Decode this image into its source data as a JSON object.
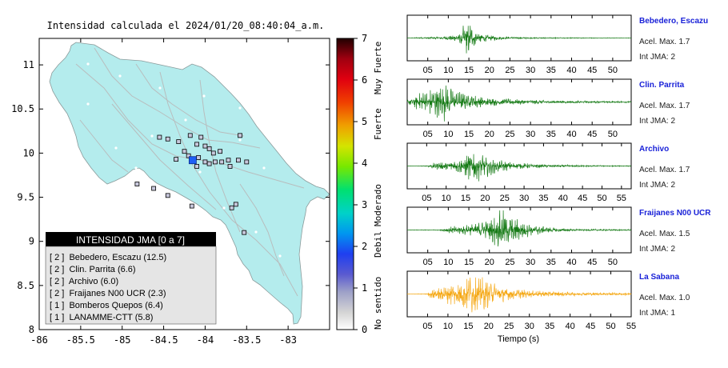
{
  "map": {
    "title": "Intensidad calculada el 2024/01/20_08:40:04_a.m.",
    "x_ticks": [
      "-86",
      "-85.5",
      "-85",
      "-84.5",
      "-84",
      "-83.5",
      "-83"
    ],
    "y_ticks": [
      "11",
      "10.5",
      "10",
      "9.5",
      "9",
      "8.5",
      "8"
    ],
    "xlim": [
      -86,
      -82.5
    ],
    "ylim": [
      8,
      11.3
    ],
    "land_color": "#b4eced",
    "legend": {
      "title": "INTENSIDAD JMA [0 a 7]",
      "items": [
        "[ 2 ]  Bebedero, Escazu (12.5)",
        "[ 2 ]  Clin. Parrita (6.6)",
        "[ 2 ]  Archivo (6.0)",
        "[ 2 ]  Fraijanes N00 UCR (2.3)",
        "[ 1 ]  Bomberos Quepos (6.4)",
        "[ 1 ]  LANAMME-CTT (5.8)"
      ]
    }
  },
  "colorbar": {
    "ticks": [
      "0",
      "1",
      "2",
      "3",
      "4",
      "5",
      "6",
      "7"
    ],
    "bands": [
      "No sentido",
      "Debil",
      "Moderado",
      "Fuerte",
      "Muy Fuerte"
    ],
    "range": [
      0,
      7
    ]
  },
  "chart_data": [
    {
      "type": "scatter",
      "title": "Intensidad calculada el 2024/01/20_08:40:04_a.m.",
      "xlim": [
        -86,
        -82.5
      ],
      "ylim": [
        8,
        11.3
      ],
      "epicenter": {
        "lon": -84.15,
        "lat": 9.92,
        "color": "#1e5ff5"
      },
      "points": [
        {
          "lon": -84.55,
          "lat": 10.18
        },
        {
          "lon": -84.45,
          "lat": 10.16
        },
        {
          "lon": -84.32,
          "lat": 10.13
        },
        {
          "lon": -84.18,
          "lat": 10.2
        },
        {
          "lon": -84.05,
          "lat": 10.18
        },
        {
          "lon": -84.1,
          "lat": 10.1
        },
        {
          "lon": -84.0,
          "lat": 10.08
        },
        {
          "lon": -83.95,
          "lat": 10.05
        },
        {
          "lon": -83.9,
          "lat": 10.0
        },
        {
          "lon": -83.82,
          "lat": 10.02
        },
        {
          "lon": -84.25,
          "lat": 10.02
        },
        {
          "lon": -84.2,
          "lat": 9.97
        },
        {
          "lon": -84.08,
          "lat": 9.95
        },
        {
          "lon": -84.0,
          "lat": 9.9
        },
        {
          "lon": -83.95,
          "lat": 9.88
        },
        {
          "lon": -83.88,
          "lat": 9.9
        },
        {
          "lon": -83.8,
          "lat": 9.9
        },
        {
          "lon": -83.72,
          "lat": 9.92
        },
        {
          "lon": -83.7,
          "lat": 9.85
        },
        {
          "lon": -83.6,
          "lat": 9.92
        },
        {
          "lon": -83.5,
          "lat": 9.9
        },
        {
          "lon": -84.35,
          "lat": 9.93
        },
        {
          "lon": -84.1,
          "lat": 9.85
        },
        {
          "lon": -83.58,
          "lat": 10.2
        },
        {
          "lon": -84.62,
          "lat": 9.6
        },
        {
          "lon": -84.82,
          "lat": 9.65
        },
        {
          "lon": -84.45,
          "lat": 9.52
        },
        {
          "lon": -84.16,
          "lat": 9.4
        },
        {
          "lon": -83.63,
          "lat": 9.42
        },
        {
          "lon": -83.68,
          "lat": 9.38
        },
        {
          "lon": -83.53,
          "lat": 9.1
        }
      ]
    },
    {
      "type": "line",
      "title": "Bebedero, Escazu",
      "xlabel": "",
      "x_ticks": [
        "05",
        "10",
        "15",
        "20",
        "25",
        "30",
        "35",
        "40",
        "45",
        "50"
      ],
      "xlim": [
        0,
        54.5
      ],
      "color": "#157a15",
      "annotations": [
        "Acel. Max. 1.7",
        "Int JMA: 2"
      ],
      "envelope": {
        "x": [
          0,
          4,
          10,
          13,
          14.5,
          15.2,
          16.5,
          19,
          23,
          30,
          54.5
        ],
        "amp": [
          0.01,
          0.04,
          0.1,
          0.3,
          1.0,
          0.85,
          0.4,
          0.18,
          0.08,
          0.03,
          0.01
        ]
      }
    },
    {
      "type": "line",
      "title": "Clin. Parrita",
      "xlabel": "",
      "x_ticks": [
        "05",
        "10",
        "15",
        "20",
        "25",
        "30",
        "35",
        "40",
        "45",
        "50"
      ],
      "xlim": [
        0,
        54.5
      ],
      "color": "#157a15",
      "annotations": [
        "Acel. Max. 1.7",
        "Int JMA: 2"
      ],
      "envelope": {
        "x": [
          0,
          1,
          4,
          7,
          9,
          10,
          12,
          15,
          19,
          25,
          35,
          45,
          54.5
        ],
        "amp": [
          0.1,
          0.3,
          0.55,
          0.8,
          1.0,
          0.8,
          0.55,
          0.4,
          0.25,
          0.15,
          0.08,
          0.05,
          0.04
        ]
      }
    },
    {
      "type": "line",
      "title": "Archivo",
      "xlabel": "",
      "x_ticks": [
        "05",
        "10",
        "15",
        "20",
        "25",
        "30",
        "35",
        "40",
        "45",
        "50",
        "55"
      ],
      "xlim": [
        0,
        57.5
      ],
      "color": "#157a15",
      "annotations": [
        "Acel. Max. 1.7",
        "Int JMA: 2"
      ],
      "envelope": {
        "x": [
          0,
          5,
          6.5,
          10,
          14,
          17,
          18.5,
          22,
          27,
          35,
          45,
          57.5
        ],
        "amp": [
          0.01,
          0.02,
          0.15,
          0.25,
          0.45,
          1.0,
          0.7,
          0.4,
          0.18,
          0.08,
          0.04,
          0.02
        ]
      }
    },
    {
      "type": "line",
      "title": "Fraijanes N00 UCR",
      "xlabel": "",
      "x_ticks": [
        "05",
        "10",
        "15",
        "20",
        "25",
        "30",
        "35",
        "40",
        "45",
        "50"
      ],
      "xlim": [
        0,
        54.5
      ],
      "color": "#157a15",
      "annotations": [
        "Acel. Max. 1.5",
        "Int JMA: 2"
      ],
      "envelope": {
        "x": [
          0,
          8,
          10,
          14,
          19,
          21,
          23,
          24,
          27,
          30,
          35,
          40,
          54.5
        ],
        "amp": [
          0.01,
          0.02,
          0.15,
          0.25,
          0.45,
          0.75,
          1.0,
          0.9,
          0.55,
          0.3,
          0.12,
          0.06,
          0.03
        ]
      }
    },
    {
      "type": "line",
      "title": "La Sabana",
      "xlabel": "Tiempo (s)",
      "x_ticks": [
        "05",
        "10",
        "15",
        "20",
        "25",
        "30",
        "35",
        "40",
        "45",
        "50",
        "55"
      ],
      "xlim": [
        0,
        55
      ],
      "color": "#f5a814",
      "annotations": [
        "Acel. Max. 1.0",
        "Int JMA: 1"
      ],
      "envelope": {
        "x": [
          0,
          5,
          6,
          9,
          13,
          16,
          18,
          20,
          22,
          25,
          30,
          40,
          55
        ],
        "amp": [
          0.01,
          0.02,
          0.3,
          0.45,
          0.7,
          1.0,
          0.85,
          0.7,
          0.5,
          0.3,
          0.18,
          0.1,
          0.06
        ]
      }
    }
  ]
}
